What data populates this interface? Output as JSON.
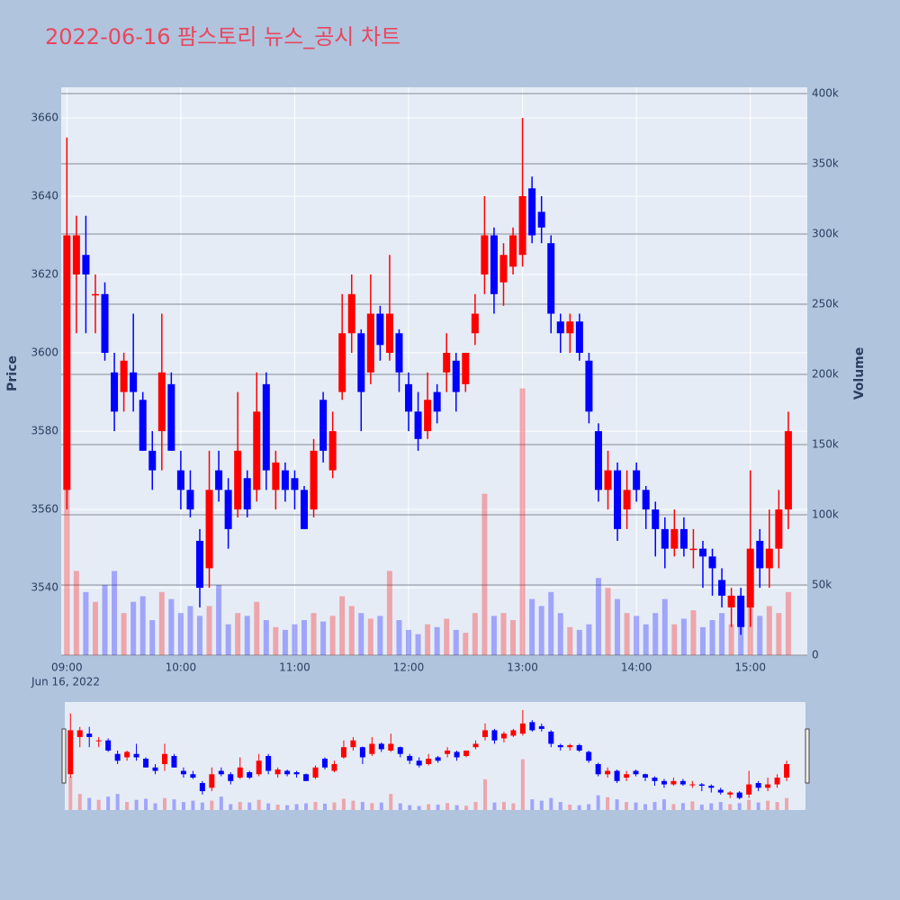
{
  "chart_data": {
    "type": "candlestick",
    "title": "2022-06-16 팜스토리 뉴스_공시 차트",
    "y_label": "Price",
    "y2_label": "Volume",
    "x_date_label": "Jun 16, 2022",
    "increasing_color": "#ff0000",
    "decreasing_color": "#0000ff",
    "x": [
      "09:00",
      "09:05",
      "09:10",
      "09:15",
      "09:20",
      "09:25",
      "09:30",
      "09:35",
      "09:40",
      "09:45",
      "09:50",
      "09:55",
      "10:00",
      "10:05",
      "10:10",
      "10:15",
      "10:20",
      "10:25",
      "10:30",
      "10:35",
      "10:40",
      "10:45",
      "10:50",
      "10:55",
      "11:00",
      "11:05",
      "11:10",
      "11:15",
      "11:20",
      "11:25",
      "11:30",
      "11:35",
      "11:40",
      "11:45",
      "11:50",
      "11:55",
      "12:00",
      "12:05",
      "12:10",
      "12:15",
      "12:20",
      "12:25",
      "12:30",
      "12:35",
      "12:40",
      "12:45",
      "12:50",
      "12:55",
      "13:00",
      "13:05",
      "13:10",
      "13:15",
      "13:20",
      "13:25",
      "13:30",
      "13:35",
      "13:40",
      "13:45",
      "13:50",
      "13:55",
      "14:00",
      "14:05",
      "14:10",
      "14:15",
      "14:20",
      "14:25",
      "14:30",
      "14:35",
      "14:40",
      "14:45",
      "14:50",
      "14:55",
      "15:00",
      "15:05",
      "15:10",
      "15:15",
      "15:20"
    ],
    "open": [
      3565,
      3620,
      3625,
      3615,
      3615,
      3595,
      3590,
      3595,
      3588,
      3575,
      3580,
      3592,
      3570,
      3565,
      3552,
      3545,
      3570,
      3565,
      3560,
      3568,
      3565,
      3592,
      3565,
      3570,
      3568,
      3565,
      3560,
      3588,
      3570,
      3590,
      3605,
      3605,
      3595,
      3610,
      3600,
      3605,
      3592,
      3585,
      3580,
      3590,
      3595,
      3598,
      3592,
      3605,
      3620,
      3630,
      3618,
      3622,
      3625,
      3642,
      3636,
      3628,
      3608,
      3605,
      3608,
      3598,
      3580,
      3565,
      3570,
      3560,
      3570,
      3565,
      3560,
      3555,
      3550,
      3555,
      3550,
      3550,
      3548,
      3542,
      3535,
      3538,
      3535,
      3552,
      3545,
      3550,
      3560
    ],
    "high": [
      3655,
      3635,
      3635,
      3620,
      3618,
      3600,
      3600,
      3610,
      3590,
      3580,
      3610,
      3595,
      3575,
      3570,
      3555,
      3575,
      3575,
      3568,
      3590,
      3570,
      3595,
      3595,
      3575,
      3572,
      3570,
      3566,
      3578,
      3590,
      3585,
      3615,
      3620,
      3606,
      3620,
      3612,
      3625,
      3606,
      3595,
      3590,
      3595,
      3592,
      3605,
      3600,
      3600,
      3615,
      3640,
      3632,
      3628,
      3632,
      3660,
      3645,
      3640,
      3630,
      3610,
      3610,
      3610,
      3600,
      3582,
      3575,
      3572,
      3570,
      3572,
      3566,
      3562,
      3558,
      3560,
      3558,
      3555,
      3552,
      3550,
      3545,
      3540,
      3540,
      3570,
      3555,
      3560,
      3565,
      3585
    ],
    "low": [
      3560,
      3605,
      3605,
      3605,
      3598,
      3580,
      3585,
      3585,
      3575,
      3565,
      3570,
      3575,
      3560,
      3558,
      3535,
      3540,
      3562,
      3550,
      3558,
      3558,
      3562,
      3565,
      3560,
      3562,
      3560,
      3555,
      3558,
      3572,
      3568,
      3588,
      3600,
      3580,
      3592,
      3598,
      3598,
      3590,
      3580,
      3575,
      3578,
      3582,
      3590,
      3585,
      3590,
      3602,
      3615,
      3610,
      3612,
      3620,
      3622,
      3628,
      3628,
      3605,
      3600,
      3600,
      3598,
      3582,
      3562,
      3560,
      3552,
      3555,
      3562,
      3555,
      3548,
      3545,
      3548,
      3548,
      3545,
      3540,
      3538,
      3535,
      3530,
      3528,
      3530,
      3540,
      3540,
      3545,
      3555
    ],
    "close": [
      3630,
      3630,
      3620,
      3615,
      3600,
      3585,
      3598,
      3590,
      3575,
      3570,
      3595,
      3575,
      3565,
      3560,
      3540,
      3565,
      3565,
      3555,
      3575,
      3560,
      3585,
      3570,
      3572,
      3565,
      3565,
      3555,
      3575,
      3575,
      3580,
      3605,
      3615,
      3590,
      3610,
      3602,
      3610,
      3595,
      3585,
      3578,
      3588,
      3585,
      3600,
      3590,
      3600,
      3610,
      3630,
      3615,
      3625,
      3630,
      3640,
      3630,
      3632,
      3610,
      3605,
      3608,
      3600,
      3585,
      3565,
      3570,
      3555,
      3565,
      3565,
      3560,
      3555,
      3550,
      3555,
      3550,
      3550,
      3548,
      3545,
      3538,
      3538,
      3530,
      3550,
      3545,
      3550,
      3560,
      3580
    ],
    "volume": [
      125000,
      60000,
      45000,
      38000,
      50000,
      60000,
      30000,
      38000,
      42000,
      25000,
      45000,
      40000,
      30000,
      35000,
      28000,
      35000,
      50000,
      22000,
      30000,
      28000,
      38000,
      25000,
      20000,
      18000,
      22000,
      25000,
      30000,
      24000,
      28000,
      42000,
      35000,
      30000,
      26000,
      28000,
      60000,
      25000,
      18000,
      15000,
      22000,
      20000,
      26000,
      18000,
      16000,
      30000,
      115000,
      28000,
      30000,
      25000,
      190000,
      40000,
      35000,
      45000,
      30000,
      20000,
      18000,
      22000,
      55000,
      48000,
      40000,
      30000,
      28000,
      22000,
      30000,
      40000,
      22000,
      26000,
      32000,
      20000,
      25000,
      30000,
      22000,
      26000,
      38000,
      28000,
      35000,
      30000,
      45000
    ],
    "xlim": [
      "08:57",
      "15:30"
    ],
    "xticks": [
      "09:00",
      "10:00",
      "11:00",
      "12:00",
      "13:00",
      "14:00",
      "15:00"
    ],
    "ylim": [
      3522.8,
      3667.8
    ],
    "yticks": [
      3540,
      3560,
      3580,
      3600,
      3620,
      3640,
      3660
    ],
    "y2lim": [
      0,
      404500
    ],
    "y2ticks": [
      {
        "value": 0,
        "label": "0"
      },
      {
        "value": 50000,
        "label": "50k"
      },
      {
        "value": 100000,
        "label": "100k"
      },
      {
        "value": 150000,
        "label": "150k"
      },
      {
        "value": 200000,
        "label": "200k"
      },
      {
        "value": 250000,
        "label": "250k"
      },
      {
        "value": 300000,
        "label": "300k"
      },
      {
        "value": 350000,
        "label": "350k"
      },
      {
        "value": 400000,
        "label": "400k"
      }
    ]
  }
}
